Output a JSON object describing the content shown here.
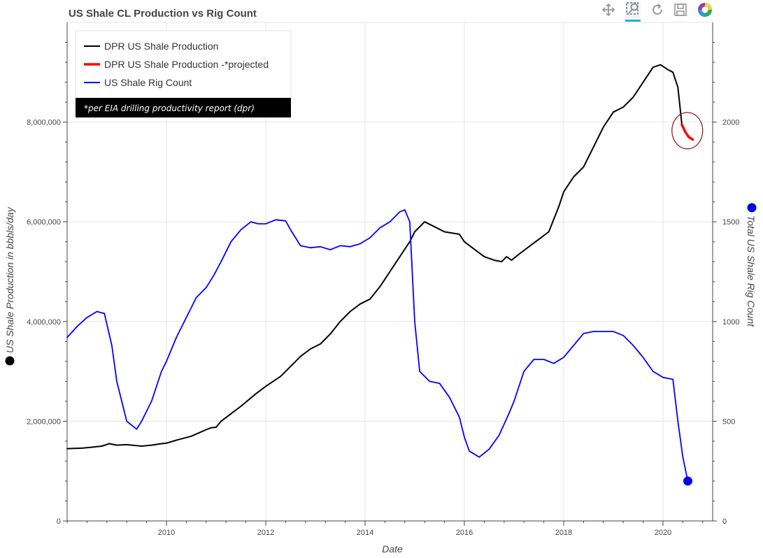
{
  "toolbar": {
    "tools": [
      {
        "icon": "pan-icon",
        "active": false
      },
      {
        "icon": "zoom-icon",
        "active": true
      },
      {
        "icon": "reset-icon",
        "active": false
      },
      {
        "icon": "save-icon",
        "active": false
      },
      {
        "icon": "bokeh-logo-icon",
        "active": false
      }
    ]
  },
  "chart_data": {
    "type": "line",
    "title": "US Shale CL Production vs Rig Count",
    "xlabel": "Date",
    "ylabel": "US Shale Production in bbbls/day",
    "y2label": "Total US Shale Rig Count",
    "xlim": [
      2008.0,
      2021.0
    ],
    "ylim": [
      0,
      10000000
    ],
    "y2lim": [
      0,
      2500
    ],
    "x_ticks": [
      2010,
      2012,
      2014,
      2016,
      2018,
      2020
    ],
    "y_ticks": [
      0,
      2000000,
      4000000,
      6000000,
      8000000
    ],
    "y_tick_labels": [
      "0",
      "2,000,000",
      "4,000,000",
      "6,000,000",
      "8,000,000"
    ],
    "y2_ticks": [
      0,
      500,
      1000,
      1500,
      2000
    ],
    "grid": true,
    "legend_position": "top-left",
    "legend_note": "*per EIA drilling productivity report (dpr)",
    "colors": {
      "production": "#000000",
      "projected": "#ff0000",
      "rigs": "#0000ff",
      "annotation_circle": "#8b1a1a"
    },
    "series": [
      {
        "name": "DPR US Shale Production",
        "axis": "left",
        "color": "#000000",
        "x": [
          2008.0,
          2008.3,
          2008.5,
          2008.7,
          2008.85,
          2009.0,
          2009.2,
          2009.5,
          2009.7,
          2009.9,
          2010.0,
          2010.2,
          2010.5,
          2010.8,
          2010.9,
          2011.0,
          2011.1,
          2011.3,
          2011.5,
          2011.8,
          2012.0,
          2012.3,
          2012.5,
          2012.7,
          2012.9,
          2013.1,
          2013.3,
          2013.5,
          2013.7,
          2013.9,
          2014.1,
          2014.3,
          2014.5,
          2014.7,
          2014.9,
          2015.0,
          2015.2,
          2015.4,
          2015.6,
          2015.9,
          2016.0,
          2016.2,
          2016.4,
          2016.6,
          2016.75,
          2016.85,
          2016.95,
          2017.1,
          2017.3,
          2017.5,
          2017.7,
          2017.9,
          2018.0,
          2018.2,
          2018.4,
          2018.6,
          2018.8,
          2019.0,
          2019.2,
          2019.4,
          2019.6,
          2019.8,
          2019.95,
          2020.1,
          2020.2,
          2020.3,
          2020.38
        ],
        "values": [
          1450000,
          1460000,
          1480000,
          1500000,
          1550000,
          1520000,
          1530000,
          1500000,
          1520000,
          1550000,
          1560000,
          1620000,
          1700000,
          1830000,
          1870000,
          1880000,
          2000000,
          2150000,
          2300000,
          2550000,
          2700000,
          2900000,
          3100000,
          3300000,
          3450000,
          3550000,
          3750000,
          4000000,
          4200000,
          4350000,
          4450000,
          4700000,
          5000000,
          5300000,
          5600000,
          5800000,
          6000000,
          5900000,
          5800000,
          5750000,
          5600000,
          5450000,
          5300000,
          5230000,
          5200000,
          5300000,
          5230000,
          5350000,
          5500000,
          5650000,
          5800000,
          6300000,
          6600000,
          6900000,
          7100000,
          7500000,
          7900000,
          8200000,
          8300000,
          8500000,
          8800000,
          9100000,
          9150000,
          9050000,
          9000000,
          8700000,
          7950000
        ]
      },
      {
        "name": "DPR US Shale Production -*projected",
        "axis": "left",
        "color": "#ff0000",
        "x": [
          2020.38,
          2020.45,
          2020.52,
          2020.6
        ],
        "values": [
          7950000,
          7800000,
          7700000,
          7650000
        ]
      },
      {
        "name": "US Shale Rig Count",
        "axis": "right",
        "color": "#0000ff",
        "x": [
          2008.0,
          2008.2,
          2008.4,
          2008.6,
          2008.75,
          2008.9,
          2009.0,
          2009.2,
          2009.4,
          2009.5,
          2009.7,
          2009.9,
          2010.0,
          2010.2,
          2010.4,
          2010.6,
          2010.8,
          2010.95,
          2011.1,
          2011.3,
          2011.5,
          2011.7,
          2011.85,
          2012.0,
          2012.2,
          2012.4,
          2012.5,
          2012.7,
          2012.9,
          2013.1,
          2013.3,
          2013.5,
          2013.7,
          2013.9,
          2014.1,
          2014.3,
          2014.5,
          2014.7,
          2014.8,
          2014.9,
          2015.0,
          2015.1,
          2015.3,
          2015.5,
          2015.7,
          2015.9,
          2016.0,
          2016.1,
          2016.3,
          2016.5,
          2016.7,
          2016.9,
          2017.0,
          2017.2,
          2017.4,
          2017.6,
          2017.8,
          2018.0,
          2018.2,
          2018.4,
          2018.6,
          2018.8,
          2019.0,
          2019.2,
          2019.4,
          2019.6,
          2019.8,
          2020.0,
          2020.2,
          2020.3,
          2020.4,
          2020.5
        ],
        "values": [
          920,
          975,
          1020,
          1050,
          1040,
          880,
          700,
          500,
          460,
          500,
          600,
          750,
          800,
          920,
          1020,
          1120,
          1170,
          1230,
          1300,
          1400,
          1460,
          1500,
          1490,
          1490,
          1510,
          1505,
          1460,
          1380,
          1370,
          1375,
          1360,
          1380,
          1375,
          1390,
          1420,
          1470,
          1500,
          1550,
          1560,
          1500,
          1000,
          750,
          700,
          690,
          620,
          520,
          420,
          350,
          320,
          360,
          430,
          540,
          600,
          750,
          810,
          810,
          790,
          820,
          880,
          940,
          950,
          950,
          950,
          930,
          880,
          820,
          750,
          720,
          710,
          500,
          320,
          200
        ]
      }
    ],
    "endpoint_marker": {
      "x": 2020.5,
      "value": 200,
      "axis": "right",
      "color": "#0000ff"
    }
  }
}
